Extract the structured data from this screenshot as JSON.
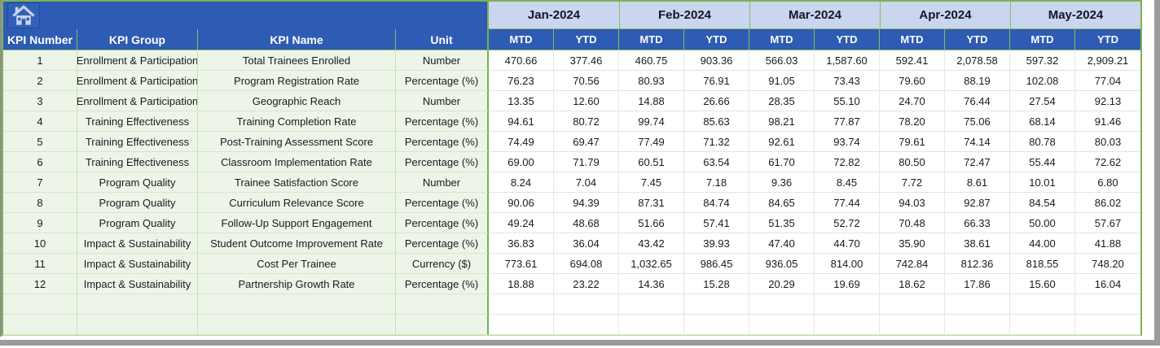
{
  "table": {
    "left_headers": [
      "KPI Number",
      "KPI Group",
      "KPI Name",
      "Unit"
    ],
    "months": [
      "Jan-2024",
      "Feb-2024",
      "Mar-2024",
      "Apr-2024",
      "May-2024"
    ],
    "sub_headers": [
      "MTD",
      "YTD"
    ],
    "rows": [
      {
        "number": "1",
        "group": "Enrollment & Participation",
        "name": "Total Trainees Enrolled",
        "unit": "Number",
        "values": [
          "470.66",
          "377.46",
          "460.75",
          "903.36",
          "566.03",
          "1,587.60",
          "592.41",
          "2,078.58",
          "597.32",
          "2,909.21"
        ]
      },
      {
        "number": "2",
        "group": "Enrollment & Participation",
        "name": "Program Registration Rate",
        "unit": "Percentage (%)",
        "values": [
          "76.23",
          "70.56",
          "80.93",
          "76.91",
          "91.05",
          "73.43",
          "79.60",
          "88.19",
          "102.08",
          "77.04"
        ]
      },
      {
        "number": "3",
        "group": "Enrollment & Participation",
        "name": "Geographic Reach",
        "unit": "Number",
        "values": [
          "13.35",
          "12.60",
          "14.88",
          "26.66",
          "28.35",
          "55.10",
          "24.70",
          "76.44",
          "27.54",
          "92.13"
        ]
      },
      {
        "number": "4",
        "group": "Training Effectiveness",
        "name": "Training Completion Rate",
        "unit": "Percentage (%)",
        "values": [
          "94.61",
          "80.72",
          "99.74",
          "85.63",
          "98.21",
          "77.87",
          "78.20",
          "75.06",
          "68.14",
          "91.46"
        ]
      },
      {
        "number": "5",
        "group": "Training Effectiveness",
        "name": "Post-Training Assessment Score",
        "unit": "Percentage (%)",
        "values": [
          "74.49",
          "69.47",
          "77.49",
          "71.32",
          "92.61",
          "93.74",
          "79.61",
          "74.14",
          "80.78",
          "80.03"
        ]
      },
      {
        "number": "6",
        "group": "Training Effectiveness",
        "name": "Classroom Implementation Rate",
        "unit": "Percentage (%)",
        "values": [
          "69.00",
          "71.79",
          "60.51",
          "63.54",
          "61.70",
          "72.82",
          "80.50",
          "72.47",
          "55.44",
          "72.62"
        ]
      },
      {
        "number": "7",
        "group": "Program Quality",
        "name": "Trainee Satisfaction Score",
        "unit": "Number",
        "values": [
          "8.24",
          "7.04",
          "7.45",
          "7.18",
          "9.36",
          "8.45",
          "7.72",
          "8.61",
          "10.01",
          "6.80"
        ]
      },
      {
        "number": "8",
        "group": "Program Quality",
        "name": "Curriculum Relevance Score",
        "unit": "Percentage (%)",
        "values": [
          "90.06",
          "94.39",
          "87.31",
          "84.74",
          "84.65",
          "77.44",
          "94.03",
          "92.87",
          "84.54",
          "86.02"
        ]
      },
      {
        "number": "9",
        "group": "Program Quality",
        "name": "Follow-Up Support Engagement",
        "unit": "Percentage (%)",
        "values": [
          "49.24",
          "48.68",
          "51.66",
          "57.41",
          "51.35",
          "52.72",
          "70.48",
          "66.33",
          "50.00",
          "57.67"
        ]
      },
      {
        "number": "10",
        "group": "Impact & Sustainability",
        "name": "Student Outcome Improvement Rate",
        "unit": "Percentage (%)",
        "values": [
          "36.83",
          "36.04",
          "43.42",
          "39.93",
          "47.40",
          "44.70",
          "35.90",
          "38.61",
          "44.00",
          "41.88"
        ]
      },
      {
        "number": "11",
        "group": "Impact & Sustainability",
        "name": "Cost Per Trainee",
        "unit": "Currency ($)",
        "values": [
          "773.61",
          "694.08",
          "1,032.65",
          "986.45",
          "936.05",
          "814.00",
          "742.84",
          "812.36",
          "818.55",
          "748.20"
        ]
      },
      {
        "number": "12",
        "group": "Impact & Sustainability",
        "name": "Partnership Growth Rate",
        "unit": "Percentage (%)",
        "values": [
          "18.88",
          "23.22",
          "14.36",
          "15.28",
          "20.29",
          "19.69",
          "18.62",
          "17.86",
          "15.60",
          "16.04"
        ]
      }
    ],
    "empty_row_count": 2
  },
  "icons": {
    "home": "home-icon"
  },
  "colors": {
    "header_blue": "#2E5BB4",
    "month_header_blue": "#CAD5EE",
    "left_pane_green": "#EDF5E8",
    "border_green": "#7CB353",
    "grid_line_green": "#d4e7c4",
    "chrome_gray": "#9b9b9b",
    "text_dark": "#1a1a1a",
    "header_text_white": "#ffffff"
  }
}
